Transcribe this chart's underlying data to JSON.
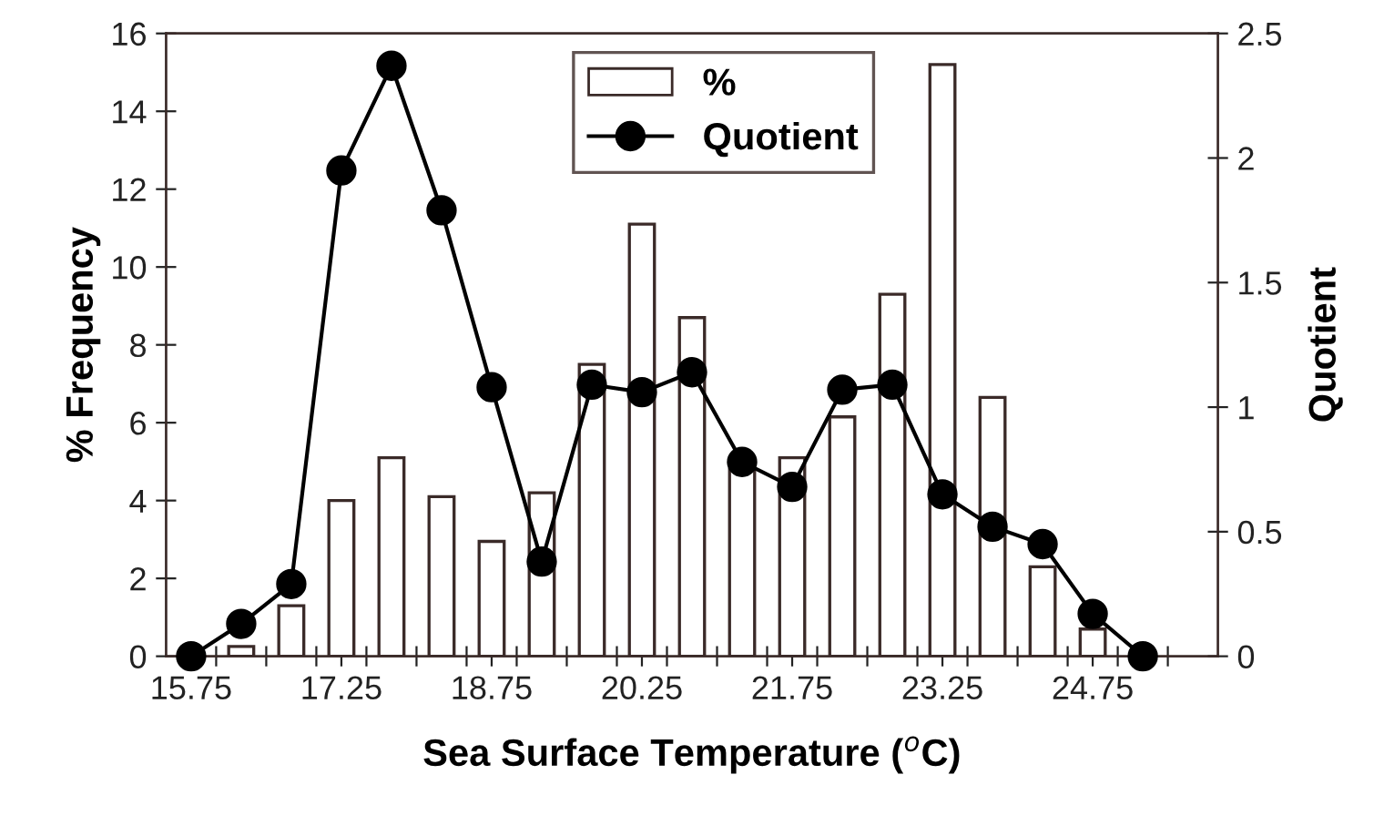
{
  "chart_data": {
    "type": "bar",
    "xlabel": "Sea Surface Temperature ($^{o}$C)",
    "ylabel": "% Frequency",
    "y2label": "Quotient",
    "x": [
      15.75,
      16.25,
      16.75,
      17.25,
      17.75,
      18.25,
      18.75,
      19.25,
      19.75,
      20.25,
      20.75,
      21.25,
      21.75,
      22.25,
      22.75,
      23.25,
      23.75,
      24.25,
      24.75,
      25.25
    ],
    "series": [
      {
        "name": "%",
        "color": "#ffffff",
        "values": [
          null,
          0.25,
          1.3,
          4.0,
          5.1,
          4.1,
          2.95,
          4.2,
          7.5,
          11.1,
          8.7,
          4.8,
          5.1,
          6.15,
          9.3,
          15.2,
          6.65,
          2.3,
          0.7,
          null
        ]
      },
      {
        "name": "Quotient",
        "type": "line",
        "axis": "y2",
        "color": "#000000",
        "marker": "circle",
        "values": [
          0,
          0.13,
          0.29,
          1.95,
          2.37,
          1.79,
          1.08,
          0.38,
          1.09,
          1.06,
          1.14,
          0.78,
          0.68,
          1.07,
          1.09,
          0.65,
          0.52,
          0.45,
          0.17,
          0
        ]
      }
    ],
    "xlim": [
      15.5,
      26.0
    ],
    "xticks": [
      15.75,
      {
        "value": 16.0,
        "label": null
      },
      {
        "value": 16.5,
        "label": null
      },
      {
        "value": 17.0,
        "label": null
      },
      17.25,
      {
        "value": 17.5,
        "label": null
      },
      {
        "value": 18.0,
        "label": null
      },
      {
        "value": 18.5,
        "label": null
      },
      18.75,
      {
        "value": 19.0,
        "label": null
      },
      {
        "value": 19.5,
        "label": null
      },
      {
        "value": 20.0,
        "label": null
      },
      20.25,
      {
        "value": 20.5,
        "label": null
      },
      {
        "value": 21.0,
        "label": null
      },
      {
        "value": 21.5,
        "label": null
      },
      21.75,
      {
        "value": 22.0,
        "label": null
      },
      {
        "value": 22.5,
        "label": null
      },
      {
        "value": 23.0,
        "label": null
      },
      23.25,
      {
        "value": 23.5,
        "label": null
      },
      {
        "value": 24.0,
        "label": null
      },
      {
        "value": 24.5,
        "label": null
      },
      24.75,
      {
        "value": 25.0,
        "label": null
      },
      {
        "value": 25.5,
        "label": null
      }
    ],
    "ylim": [
      0,
      16
    ],
    "yticks": [
      0,
      2,
      4,
      6,
      8,
      10,
      12,
      14,
      16
    ],
    "y2lim": [
      0,
      2.5
    ],
    "y2ticks": [
      0,
      0.5,
      1,
      1.5,
      2,
      2.5
    ],
    "legend": "top",
    "grid": false
  }
}
